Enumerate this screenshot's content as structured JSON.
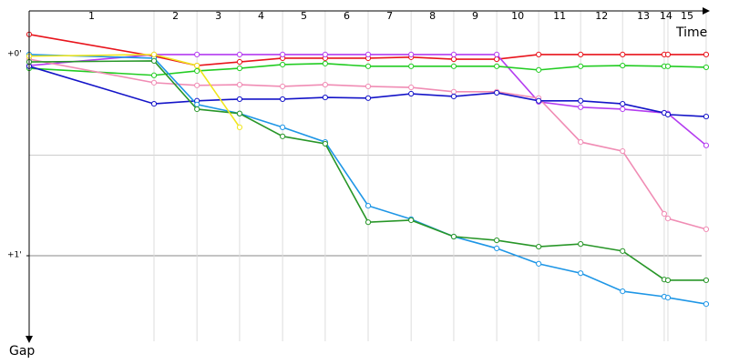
{
  "chart_data": {
    "type": "line",
    "x_label": "Time",
    "y_label": "Gap",
    "laps": [
      "1",
      "2",
      "3",
      "4",
      "5",
      "6",
      "7",
      "8",
      "9",
      "10",
      "11",
      "12",
      "13",
      "14",
      "15"
    ],
    "lap_ends": [
      37.2,
      50.0,
      62.7,
      75.5,
      88.2,
      101.0,
      113.8,
      126.5,
      139.3,
      151.8,
      164.3,
      176.8,
      189.2,
      190.3,
      201.7
    ],
    "x": [
      0,
      37.2,
      50.0,
      62.7,
      75.5,
      88.2,
      101.0,
      113.8,
      126.5,
      139.3,
      151.8,
      164.3,
      176.8,
      189.2,
      190.3,
      201.7
    ],
    "xlim": [
      0,
      208.5
    ],
    "ylim": [
      -13,
      85.5
    ],
    "yticks": [
      {
        "value": 0,
        "label": "+0'"
      },
      {
        "value": 60,
        "label": "+1'"
      }
    ],
    "ygrid": [
      30,
      60
    ],
    "series": [
      {
        "color": "#e8141c",
        "values": [
          -6.0,
          0.5,
          3.3,
          2.2,
          1.1,
          1.1,
          1.1,
          0.8,
          1.4,
          1.4,
          0,
          0,
          0,
          0,
          0,
          0
        ]
      },
      {
        "color": "#b43cf0",
        "values": [
          3.3,
          0,
          0,
          0,
          0,
          0,
          0,
          0,
          0,
          0,
          14.1,
          15.7,
          16.3,
          17.4,
          17.6,
          27.1
        ]
      },
      {
        "color": "#22cc22",
        "values": [
          4.1,
          6.2,
          4.9,
          4.1,
          3.0,
          2.7,
          3.5,
          3.5,
          3.5,
          3.5,
          4.6,
          3.5,
          3.3,
          3.5,
          3.5,
          3.8
        ]
      },
      {
        "color": "#f08cb4",
        "values": [
          1.4,
          8.4,
          9.2,
          9.0,
          9.5,
          9.0,
          9.5,
          9.8,
          11.1,
          11.1,
          13.0,
          26.1,
          28.8,
          47.5,
          48.9,
          52.1
        ]
      },
      {
        "color": "#1414c8",
        "values": [
          3.5,
          14.7,
          13.8,
          13.3,
          13.3,
          12.8,
          13.0,
          11.7,
          12.5,
          11.4,
          13.8,
          13.8,
          14.7,
          17.4,
          17.9,
          18.5
        ]
      },
      {
        "color": "#1e96e6",
        "values": [
          0,
          1.1,
          14.9,
          17.6,
          21.7,
          26.1,
          45.1,
          49.1,
          54.3,
          57.8,
          62.4,
          65.2,
          70.6,
          72.2,
          72.5,
          74.4
        ]
      },
      {
        "color": "#289628",
        "values": [
          2.2,
          1.9,
          16.3,
          17.6,
          24.4,
          26.6,
          50.0,
          49.4,
          54.3,
          55.4,
          57.3,
          56.5,
          58.6,
          67.1,
          67.3,
          67.3
        ]
      },
      {
        "color": "#f0e61e",
        "values": [
          0.5,
          0,
          3.3,
          21.7,
          null,
          null,
          null,
          null,
          null,
          null,
          null,
          null,
          null,
          null,
          null,
          null
        ]
      }
    ]
  }
}
